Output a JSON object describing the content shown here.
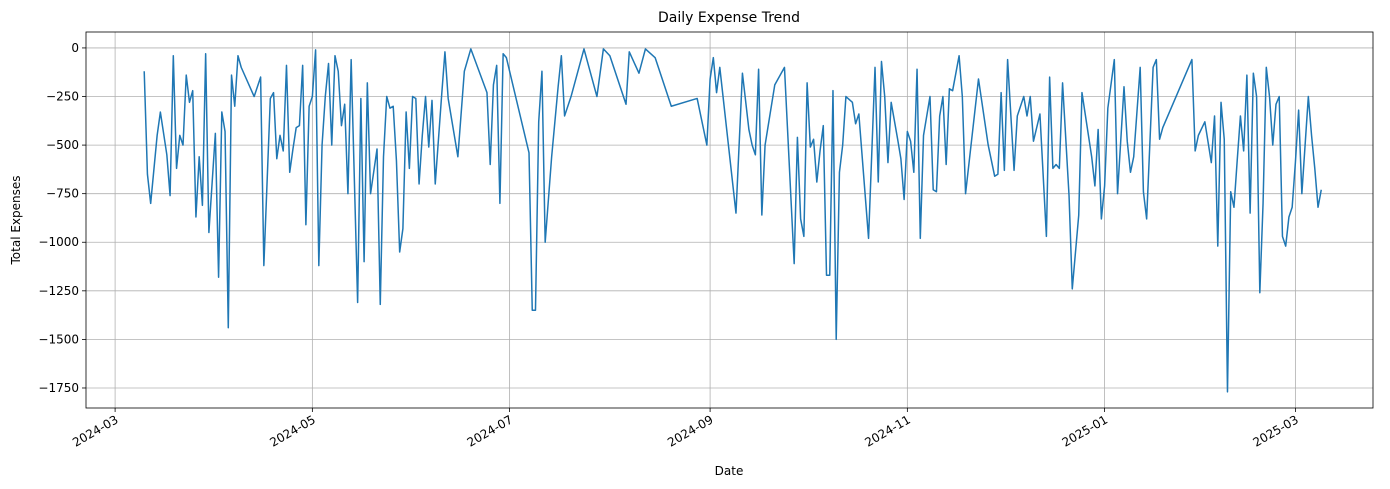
{
  "chart_data": {
    "type": "line",
    "title": "Daily Expense Trend",
    "x_label": "Date",
    "y_label": "Total Expenses",
    "x": [
      "2024-03-10",
      "2024-03-11",
      "2024-03-12",
      "2024-03-14",
      "2024-03-15",
      "2024-03-17",
      "2024-03-18",
      "2024-03-19",
      "2024-03-20",
      "2024-03-21",
      "2024-03-22",
      "2024-03-23",
      "2024-03-24",
      "2024-03-25",
      "2024-03-26",
      "2024-03-27",
      "2024-03-28",
      "2024-03-29",
      "2024-03-30",
      "2024-04-01",
      "2024-04-02",
      "2024-04-03",
      "2024-04-04",
      "2024-04-05",
      "2024-04-06",
      "2024-04-07",
      "2024-04-08",
      "2024-04-09",
      "2024-04-13",
      "2024-04-15",
      "2024-04-16",
      "2024-04-18",
      "2024-04-19",
      "2024-04-20",
      "2024-04-21",
      "2024-04-22",
      "2024-04-23",
      "2024-04-24",
      "2024-04-25",
      "2024-04-26",
      "2024-04-27",
      "2024-04-28",
      "2024-04-29",
      "2024-04-30",
      "2024-05-01",
      "2024-05-02",
      "2024-05-03",
      "2024-05-04",
      "2024-05-05",
      "2024-05-06",
      "2024-05-07",
      "2024-05-08",
      "2024-05-09",
      "2024-05-10",
      "2024-05-11",
      "2024-05-12",
      "2024-05-13",
      "2024-05-15",
      "2024-05-16",
      "2024-05-17",
      "2024-05-18",
      "2024-05-19",
      "2024-05-21",
      "2024-05-22",
      "2024-05-23",
      "2024-05-24",
      "2024-05-25",
      "2024-05-26",
      "2024-05-27",
      "2024-05-28",
      "2024-05-29",
      "2024-05-30",
      "2024-05-31",
      "2024-06-01",
      "2024-06-02",
      "2024-06-03",
      "2024-06-04",
      "2024-06-05",
      "2024-06-06",
      "2024-06-07",
      "2024-06-08",
      "2024-06-10",
      "2024-06-11",
      "2024-06-12",
      "2024-06-15",
      "2024-06-17",
      "2024-06-19",
      "2024-06-24",
      "2024-06-25",
      "2024-06-26",
      "2024-06-27",
      "2024-06-28",
      "2024-06-29",
      "2024-06-30",
      "2024-07-07",
      "2024-07-08",
      "2024-07-09",
      "2024-07-10",
      "2024-07-11",
      "2024-07-12",
      "2024-07-14",
      "2024-07-16",
      "2024-07-17",
      "2024-07-18",
      "2024-07-20",
      "2024-07-24",
      "2024-07-28",
      "2024-07-30",
      "2024-08-01",
      "2024-08-06",
      "2024-08-07",
      "2024-08-10",
      "2024-08-12",
      "2024-08-15",
      "2024-08-20",
      "2024-08-28",
      "2024-08-31",
      "2024-09-01",
      "2024-09-02",
      "2024-09-03",
      "2024-09-04",
      "2024-09-05",
      "2024-09-09",
      "2024-09-11",
      "2024-09-13",
      "2024-09-14",
      "2024-09-15",
      "2024-09-16",
      "2024-09-17",
      "2024-09-18",
      "2024-09-21",
      "2024-09-24",
      "2024-09-27",
      "2024-09-28",
      "2024-09-29",
      "2024-09-30",
      "2024-10-01",
      "2024-10-02",
      "2024-10-03",
      "2024-10-04",
      "2024-10-05",
      "2024-10-06",
      "2024-10-07",
      "2024-10-08",
      "2024-10-09",
      "2024-10-10",
      "2024-10-11",
      "2024-10-12",
      "2024-10-13",
      "2024-10-15",
      "2024-10-16",
      "2024-10-17",
      "2024-10-20",
      "2024-10-22",
      "2024-10-23",
      "2024-10-24",
      "2024-10-25",
      "2024-10-26",
      "2024-10-27",
      "2024-10-29",
      "2024-10-30",
      "2024-10-31",
      "2024-11-01",
      "2024-11-02",
      "2024-11-03",
      "2024-11-04",
      "2024-11-05",
      "2024-11-06",
      "2024-11-08",
      "2024-11-09",
      "2024-11-10",
      "2024-11-11",
      "2024-11-12",
      "2024-11-13",
      "2024-11-14",
      "2024-11-15",
      "2024-11-17",
      "2024-11-18",
      "2024-11-19",
      "2024-11-23",
      "2024-11-26",
      "2024-11-28",
      "2024-11-29",
      "2024-11-30",
      "2024-12-01",
      "2024-12-02",
      "2024-12-04",
      "2024-12-05",
      "2024-12-07",
      "2024-12-08",
      "2024-12-09",
      "2024-12-10",
      "2024-12-12",
      "2024-12-14",
      "2024-12-15",
      "2024-12-16",
      "2024-12-17",
      "2024-12-18",
      "2024-12-19",
      "2024-12-21",
      "2024-12-22",
      "2024-12-24",
      "2024-12-25",
      "2024-12-28",
      "2024-12-29",
      "2024-12-30",
      "2024-12-31",
      "2025-01-01",
      "2025-01-02",
      "2025-01-04",
      "2025-01-05",
      "2025-01-07",
      "2025-01-08",
      "2025-01-09",
      "2025-01-10",
      "2025-01-12",
      "2025-01-13",
      "2025-01-14",
      "2025-01-16",
      "2025-01-17",
      "2025-01-18",
      "2025-01-19",
      "2025-01-28",
      "2025-01-29",
      "2025-01-30",
      "2025-02-01",
      "2025-02-03",
      "2025-02-04",
      "2025-02-05",
      "2025-02-06",
      "2025-02-07",
      "2025-02-08",
      "2025-02-09",
      "2025-02-10",
      "2025-02-11",
      "2025-02-12",
      "2025-02-13",
      "2025-02-14",
      "2025-02-15",
      "2025-02-16",
      "2025-02-17",
      "2025-02-18",
      "2025-02-19",
      "2025-02-20",
      "2025-02-21",
      "2025-02-22",
      "2025-02-23",
      "2025-02-24",
      "2025-02-25",
      "2025-02-26",
      "2025-02-27",
      "2025-02-28",
      "2025-03-01",
      "2025-03-02",
      "2025-03-03",
      "2025-03-05",
      "2025-03-06",
      "2025-03-07",
      "2025-03-08",
      "2025-03-09"
    ],
    "values": [
      -120,
      -650,
      -800,
      -450,
      -330,
      -550,
      -760,
      -40,
      -620,
      -450,
      -500,
      -140,
      -280,
      -220,
      -870,
      -560,
      -810,
      -30,
      -950,
      -440,
      -1180,
      -330,
      -430,
      -1440,
      -140,
      -300,
      -40,
      -100,
      -250,
      -150,
      -1120,
      -260,
      -230,
      -570,
      -450,
      -530,
      -90,
      -640,
      -520,
      -410,
      -400,
      -90,
      -910,
      -300,
      -250,
      -10,
      -1120,
      -500,
      -250,
      -80,
      -500,
      -40,
      -120,
      -400,
      -290,
      -750,
      -60,
      -1310,
      -260,
      -1100,
      -180,
      -750,
      -520,
      -1320,
      -560,
      -250,
      -310,
      -300,
      -580,
      -1050,
      -930,
      -330,
      -620,
      -250,
      -260,
      -700,
      -450,
      -250,
      -510,
      -270,
      -700,
      -240,
      -20,
      -260,
      -560,
      -120,
      -5,
      -230,
      -600,
      -190,
      -90,
      -800,
      -30,
      -50,
      -540,
      -1350,
      -1350,
      -380,
      -120,
      -1000,
      -560,
      -200,
      -40,
      -350,
      -250,
      -5,
      -250,
      -5,
      -40,
      -290,
      -20,
      -130,
      -5,
      -50,
      -300,
      -260,
      -500,
      -160,
      -50,
      -230,
      -100,
      -250,
      -850,
      -130,
      -420,
      -500,
      -550,
      -110,
      -860,
      -500,
      -190,
      -100,
      -1110,
      -460,
      -880,
      -970,
      -180,
      -510,
      -470,
      -690,
      -530,
      -400,
      -1170,
      -1170,
      -220,
      -1500,
      -640,
      -500,
      -250,
      -280,
      -390,
      -340,
      -980,
      -100,
      -690,
      -70,
      -250,
      -590,
      -280,
      -470,
      -570,
      -780,
      -430,
      -480,
      -640,
      -110,
      -980,
      -450,
      -250,
      -730,
      -740,
      -350,
      -250,
      -600,
      -210,
      -220,
      -40,
      -250,
      -750,
      -160,
      -500,
      -660,
      -650,
      -230,
      -630,
      -60,
      -630,
      -350,
      -250,
      -350,
      -250,
      -480,
      -340,
      -970,
      -150,
      -620,
      -600,
      -620,
      -180,
      -760,
      -1240,
      -860,
      -230,
      -560,
      -710,
      -420,
      -880,
      -710,
      -310,
      -60,
      -750,
      -200,
      -480,
      -640,
      -560,
      -100,
      -740,
      -880,
      -100,
      -60,
      -470,
      -410,
      -60,
      -530,
      -450,
      -380,
      -590,
      -350,
      -1020,
      -280,
      -470,
      -1770,
      -740,
      -820,
      -580,
      -350,
      -530,
      -140,
      -850,
      -130,
      -250,
      -1260,
      -800,
      -100,
      -250,
      -500,
      -290,
      -250,
      -970,
      -1020,
      -870,
      -820,
      -590,
      -320,
      -750,
      -250,
      -450,
      -620,
      -820,
      -730
    ],
    "color": "#1f77b4",
    "xlim": [
      "2024-02-21",
      "2025-03-25"
    ],
    "xticks": [
      {
        "value": "2024-03-01",
        "label": "2024-03"
      },
      {
        "value": "2024-05-01",
        "label": "2024-05"
      },
      {
        "value": "2024-07-01",
        "label": "2024-07"
      },
      {
        "value": "2024-09-01",
        "label": "2024-09"
      },
      {
        "value": "2024-11-01",
        "label": "2024-11"
      },
      {
        "value": "2025-01-01",
        "label": "2025-01"
      },
      {
        "value": "2025-03-01",
        "label": "2025-03"
      }
    ],
    "ylim": [
      -1853,
      82
    ],
    "yticks": [
      {
        "value": -1750,
        "label": "−1750"
      },
      {
        "value": -1500,
        "label": "−1500"
      },
      {
        "value": -1250,
        "label": "−1250"
      },
      {
        "value": -1000,
        "label": "−1000"
      },
      {
        "value": -750,
        "label": "−750"
      },
      {
        "value": -500,
        "label": "−500"
      },
      {
        "value": -250,
        "label": "−250"
      },
      0
    ],
    "grid": true
  }
}
